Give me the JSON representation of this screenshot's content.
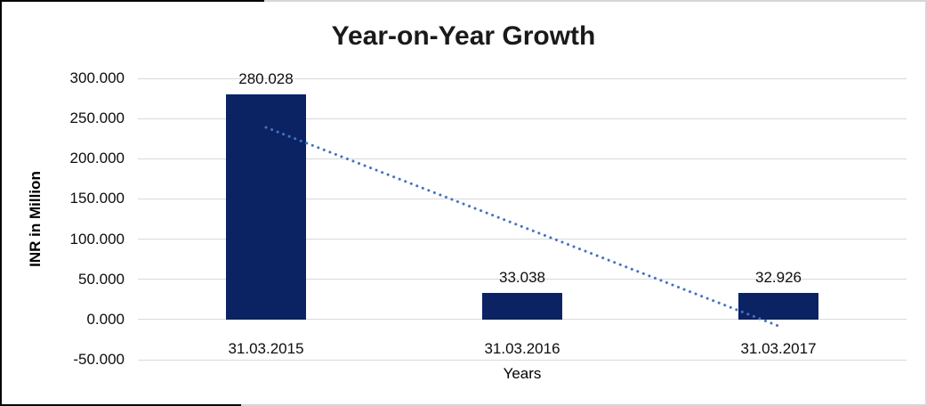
{
  "chart_data": {
    "type": "bar",
    "title": "Year-on-Year Growth",
    "xlabel": "Years",
    "ylabel": "INR in Million",
    "categories": [
      "31.03.2015",
      "31.03.2016",
      "31.03.2017"
    ],
    "values": [
      280.028,
      33.038,
      32.926
    ],
    "data_labels": [
      "280.028",
      "33.038",
      "32.926"
    ],
    "y_ticks": [
      {
        "label": "300.000",
        "value": 300
      },
      {
        "label": "250.000",
        "value": 250
      },
      {
        "label": "200.000",
        "value": 200
      },
      {
        "label": "150.000",
        "value": 150
      },
      {
        "label": "100.000",
        "value": 100
      },
      {
        "label": "50.000",
        "value": 50
      },
      {
        "label": "0.000",
        "value": 0
      },
      {
        "label": "-50.000",
        "value": -50
      }
    ],
    "ylim": [
      -50,
      300
    ],
    "grid": true,
    "legend": false,
    "colors": {
      "bar": "#0b2363",
      "trendline": "#4472c4",
      "gridline": "#d9d9d9",
      "text": "#0d0d0d"
    },
    "trendline": {
      "type": "linear",
      "style": "dotted",
      "start_value": 239,
      "end_value": -8
    }
  }
}
